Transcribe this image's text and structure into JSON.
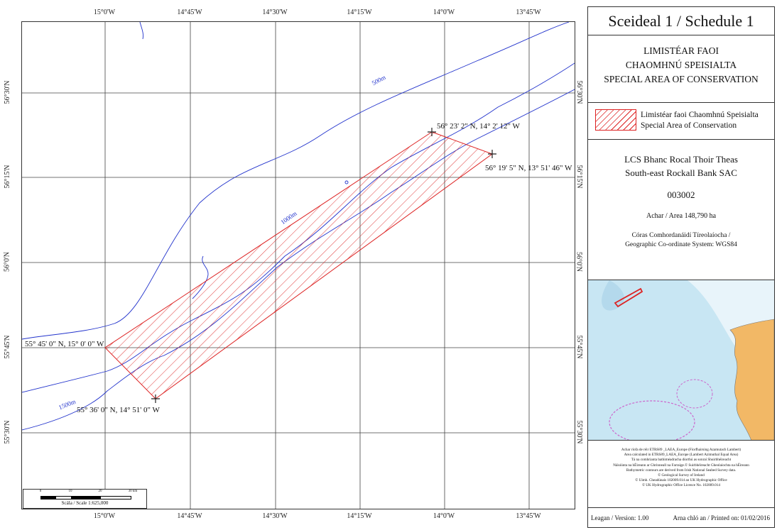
{
  "map": {
    "lon_ticks_top": [
      "15°0'W",
      "14°45'W",
      "14°30'W",
      "14°15'W",
      "14°0'W",
      "13°45'W"
    ],
    "lon_ticks_bottom": [
      "15°0'W",
      "14°45'W",
      "14°30'W",
      "14°15'W",
      "14°0'W",
      "13°45'W"
    ],
    "lat_ticks_left": [
      "56°30'N",
      "56°15'N",
      "56°0'N",
      "55°45'N",
      "55°30'N"
    ],
    "lat_ticks_right": [
      "56°30'N",
      "56°15'N",
      "56°0'N",
      "55°45'N",
      "55°30'N"
    ],
    "vertices": [
      {
        "label": "56° 23' 2\" N, 14° 2' 12\" W"
      },
      {
        "label": "56° 19' 5\" N, 13° 51' 46\" W"
      },
      {
        "label": "55° 45' 0\" N, 15° 0' 0\" W"
      },
      {
        "label": "55° 36' 0\" N, 14° 51' 0\" W"
      }
    ],
    "contours": {
      "c500": "500m",
      "c1000": "1000m",
      "c1500": "1500m"
    },
    "colors": {
      "contour": "#2233cc",
      "sac": "#dd2222",
      "grid": "#444444"
    }
  },
  "scale": {
    "ticks": [
      "0",
      "10",
      "20",
      "30 km"
    ],
    "caption": "Scála / Scale 1:625,000"
  },
  "panel": {
    "title": "Sceideal 1 / Schedule 1",
    "sac_ga_1": "LIMISTÉAR FAOI",
    "sac_ga_2": "CHAOMHNÚ SPEISIALTA",
    "sac_en": "SPECIAL AREA OF CONSERVATION",
    "legend_ga": "Limistéar faoi Chaomhnú Speisialta",
    "legend_en": "Special Area of Conservation",
    "site_ga": "LCS Bhanc Rocal Thoir Theas",
    "site_en": "South-east Rockall Bank SAC",
    "site_code": "003002",
    "area": "Achar / Area 148,790 ha",
    "crs_ga": "Córas Comhordanáidí Tíreolaíocha /",
    "crs_en": "Geographic Co-ordinate System: WGS84",
    "notes": [
      "Achar ríofa de réir ETRS89 _LAEA_Europe (Fíorfhairsing Azamutach Lambert)",
      "Area calculated in ETRS89_LAEA_Europe (Lambert Azimuthal Equal Area)",
      "Tá na comhrianta bathiméadracha díorthú as sonraí Shuirbhéireacht",
      "Náisiúnta na hÉireann ar Ghrinneall na Farraige.© Suirbhéireacht Gheolaíochta na hÉireann",
      "Bathymetric contours are derived from Irish National Seabed Survey data.",
      "© Geological Survey of Ireland",
      "© Uimh. Cheadúnais 102009.014 an UK Hydrographic Office",
      "© UK Hydrographic Office Licence No. 102009.014"
    ],
    "version": "Leagan / Version: 1.00",
    "printed": "Arna chló an / Printed on: 01/02/2016"
  }
}
